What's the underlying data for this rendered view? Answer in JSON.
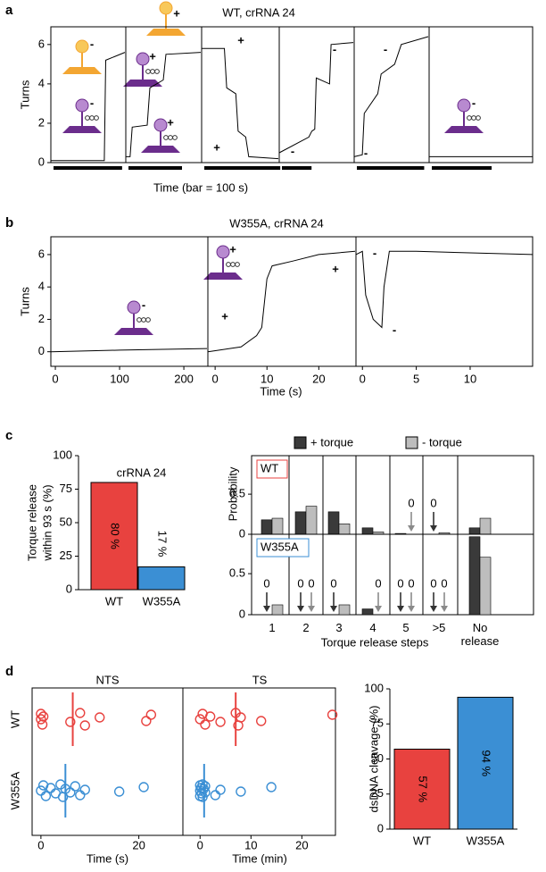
{
  "panel_labels": [
    "a",
    "b",
    "c",
    "d"
  ],
  "chart_data": [
    {
      "type": "line",
      "title": "WT, crRNA 24",
      "ylabel": "Turns",
      "xlabel": "Time (bar = 100 s)",
      "scale_bar": 100,
      "ylim": [
        0,
        6.9
      ],
      "yticks": [
        0,
        2,
        4,
        6
      ],
      "traces": [
        {
          "xlim": [
            0,
            108
          ],
          "x": [
            0,
            78,
            80,
            108
          ],
          "values": [
            0.1,
            0.1,
            5.2,
            5.6
          ],
          "annotations": [
            {
              "text": "-",
              "color": "#222222"
            },
            {
              "text": "-",
              "color": "#222222"
            }
          ]
        },
        {
          "xlim": [
            0,
            140
          ],
          "x": [
            0,
            8,
            12,
            40,
            45,
            70,
            75,
            140
          ],
          "values": [
            0.3,
            0.3,
            1.8,
            1.9,
            3.8,
            4.2,
            5.5,
            5.6
          ],
          "annotations": [
            {
              "text": "+",
              "color": "#222222"
            },
            {
              "text": "+",
              "color": "#e8423f"
            },
            {
              "text": "+",
              "color": "#222222"
            }
          ]
        },
        {
          "xlim": [
            0,
            101
          ],
          "x": [
            0,
            30,
            33,
            45,
            48,
            58,
            62,
            101
          ],
          "values": [
            5.8,
            5.8,
            3.8,
            3.5,
            1.6,
            1.3,
            0.3,
            0.2
          ],
          "annotations": [
            {
              "text": "+",
              "color": "#f3a632"
            },
            {
              "text": "+",
              "color": "#6b2d8c"
            }
          ]
        },
        {
          "xlim": [
            0,
            250
          ],
          "x": [
            0,
            100,
            110,
            120,
            125,
            170,
            175,
            250
          ],
          "values": [
            0.5,
            1.3,
            1.6,
            1.7,
            4.3,
            4.0,
            6.0,
            6.1
          ],
          "annotations": [
            {
              "text": "-",
              "color": "#f3a632"
            },
            {
              "text": "-",
              "color": "#6b2d8c"
            }
          ]
        },
        {
          "xlim": [
            0,
            110
          ],
          "x": [
            0,
            12,
            15,
            35,
            40,
            60,
            70,
            110
          ],
          "values": [
            0.3,
            0.4,
            2.5,
            3.5,
            4.5,
            5.0,
            6.0,
            6.4
          ],
          "annotations": [
            {
              "text": "-",
              "color": "#f3a632"
            },
            {
              "text": "-",
              "color": "#6b2d8c"
            }
          ]
        },
        {
          "xlim": [
            0,
            173
          ],
          "x": [
            0,
            173
          ],
          "values": [
            0.3,
            0.3
          ],
          "annotations": [
            {
              "text": "-",
              "color": "#222222"
            }
          ]
        }
      ]
    },
    {
      "type": "line",
      "title": "W355A, crRNA 24",
      "ylabel": "Turns",
      "xlabel": "Time (s)",
      "ylim": [
        -0.9,
        7.1
      ],
      "yticks": [
        0,
        2,
        4,
        6
      ],
      "traces": [
        {
          "xlim": [
            -7,
            236
          ],
          "xticks": [
            0,
            100,
            200
          ],
          "x": [
            -7,
            100,
            236
          ],
          "values": [
            0,
            0.1,
            0.2
          ],
          "annotations": [
            {
              "text": "-",
              "color": "#222222"
            }
          ]
        },
        {
          "xlim": [
            -1.4,
            27
          ],
          "xticks": [
            0,
            10,
            20
          ],
          "x": [
            -1.4,
            5,
            8,
            9,
            10,
            11,
            15,
            20,
            27
          ],
          "values": [
            0,
            0.3,
            1,
            1.5,
            4.5,
            5.3,
            5.6,
            6.0,
            6.2
          ],
          "annotations": [
            {
              "text": "+",
              "color": "#222222"
            },
            {
              "text": "+",
              "color": "#6b2d8c"
            },
            {
              "text": "+",
              "color": "#f3a632"
            }
          ]
        },
        {
          "xlim": [
            -0.6,
            15.8
          ],
          "xticks": [
            0,
            5,
            10
          ],
          "x": [
            -0.6,
            0,
            0.3,
            1,
            1.8,
            2,
            2.5,
            5,
            15.8
          ],
          "values": [
            6,
            6.2,
            3.5,
            2.0,
            1.5,
            4,
            6.2,
            6.2,
            6
          ],
          "annotations": [
            {
              "text": "-",
              "color": "#f3a632"
            },
            {
              "text": "-",
              "color": "#6b2d8c"
            }
          ]
        }
      ]
    },
    {
      "type": "bar",
      "annotation": "crRNA 24",
      "ylabel": [
        "Torque release",
        "within 93 s (%)"
      ],
      "categories": [
        "WT",
        "W355A"
      ],
      "values": [
        80,
        17
      ],
      "value_labels": [
        "80 %",
        "17 %"
      ],
      "colors": [
        "#e8423f",
        "#3b8fd4"
      ],
      "ylim": [
        0,
        100
      ],
      "yticks": [
        0,
        25,
        50,
        75,
        100
      ]
    },
    {
      "type": "grouped-bar",
      "ylabel": "Probability",
      "xlabel": "Torque release steps",
      "legend": [
        {
          "name": "+ torque",
          "color": "#3a3a3a"
        },
        {
          "name": "- torque",
          "color": "#bdbdbd"
        }
      ],
      "categories": [
        "1",
        "2",
        "3",
        "4",
        "5",
        ">5",
        "No release"
      ],
      "ylim": [
        0,
        0.98
      ],
      "yticks": [
        0,
        0.5
      ],
      "rows": [
        {
          "name": "WT",
          "color": "#e8423f",
          "series": [
            {
              "values": [
                0.18,
                0.28,
                0.28,
                0.08,
                0.01,
                0,
                0.08
              ],
              "value_labels": [
                null,
                null,
                null,
                null,
                null,
                "0",
                null
              ]
            },
            {
              "values": [
                0.2,
                0.35,
                0.13,
                0.03,
                0,
                0.02,
                0.2
              ],
              "value_labels": [
                null,
                null,
                null,
                null,
                "0",
                null,
                null
              ]
            }
          ]
        },
        {
          "name": "W355A",
          "color": "#3b8fd4",
          "series": [
            {
              "values": [
                0,
                0,
                0,
                0.07,
                0,
                0,
                0.95
              ],
              "value_labels": [
                "0",
                "0",
                "0",
                null,
                "0",
                "0",
                null
              ]
            },
            {
              "values": [
                0.12,
                0,
                0.12,
                0,
                0,
                0,
                0.7
              ],
              "value_labels": [
                null,
                "0",
                null,
                "0",
                "0",
                "0",
                null
              ]
            }
          ]
        }
      ]
    },
    {
      "type": "scatter",
      "categories": [
        "WT",
        "W355A"
      ],
      "panels": [
        {
          "title": "NTS",
          "xlabel": "Time (s)",
          "xlim": [
            -1.8,
            29
          ],
          "xticks": [
            0,
            20
          ],
          "series": [
            {
              "color": "#e8423f",
              "values": [
                0,
                0,
                0.3,
                0.5,
                6,
                8,
                9,
                12,
                21.5,
                22.5
              ],
              "median": 6.5
            },
            {
              "color": "#3b8fd4",
              "values": [
                0,
                0.5,
                1,
                2,
                3,
                4,
                4.5,
                5,
                6,
                7,
                8,
                9,
                16,
                21
              ],
              "median": 5
            }
          ]
        },
        {
          "title": "TS",
          "xlabel": "Time (min)",
          "xlim": [
            -3.2,
            26.6
          ],
          "xticks": [
            0,
            10,
            20
          ],
          "series": [
            {
              "color": "#e8423f",
              "values": [
                0,
                0.5,
                1,
                2,
                4,
                7,
                7.5,
                8,
                12,
                26
              ],
              "median": 7
            },
            {
              "color": "#3b8fd4",
              "values": [
                0,
                0,
                0,
                0.2,
                0.3,
                0.5,
                0.5,
                0.7,
                1,
                1,
                3,
                4,
                8,
                14
              ],
              "median": 0.8
            }
          ]
        }
      ]
    },
    {
      "type": "bar",
      "ylabel": "dsDNA cleavage (%)",
      "categories": [
        "WT",
        "W355A"
      ],
      "values": [
        57,
        94
      ],
      "value_labels": [
        "57 %",
        "94 %"
      ],
      "colors": [
        "#e8423f",
        "#3b8fd4"
      ],
      "ylim": [
        0,
        100
      ],
      "yticks": [
        0,
        25,
        50,
        75,
        100
      ]
    }
  ]
}
